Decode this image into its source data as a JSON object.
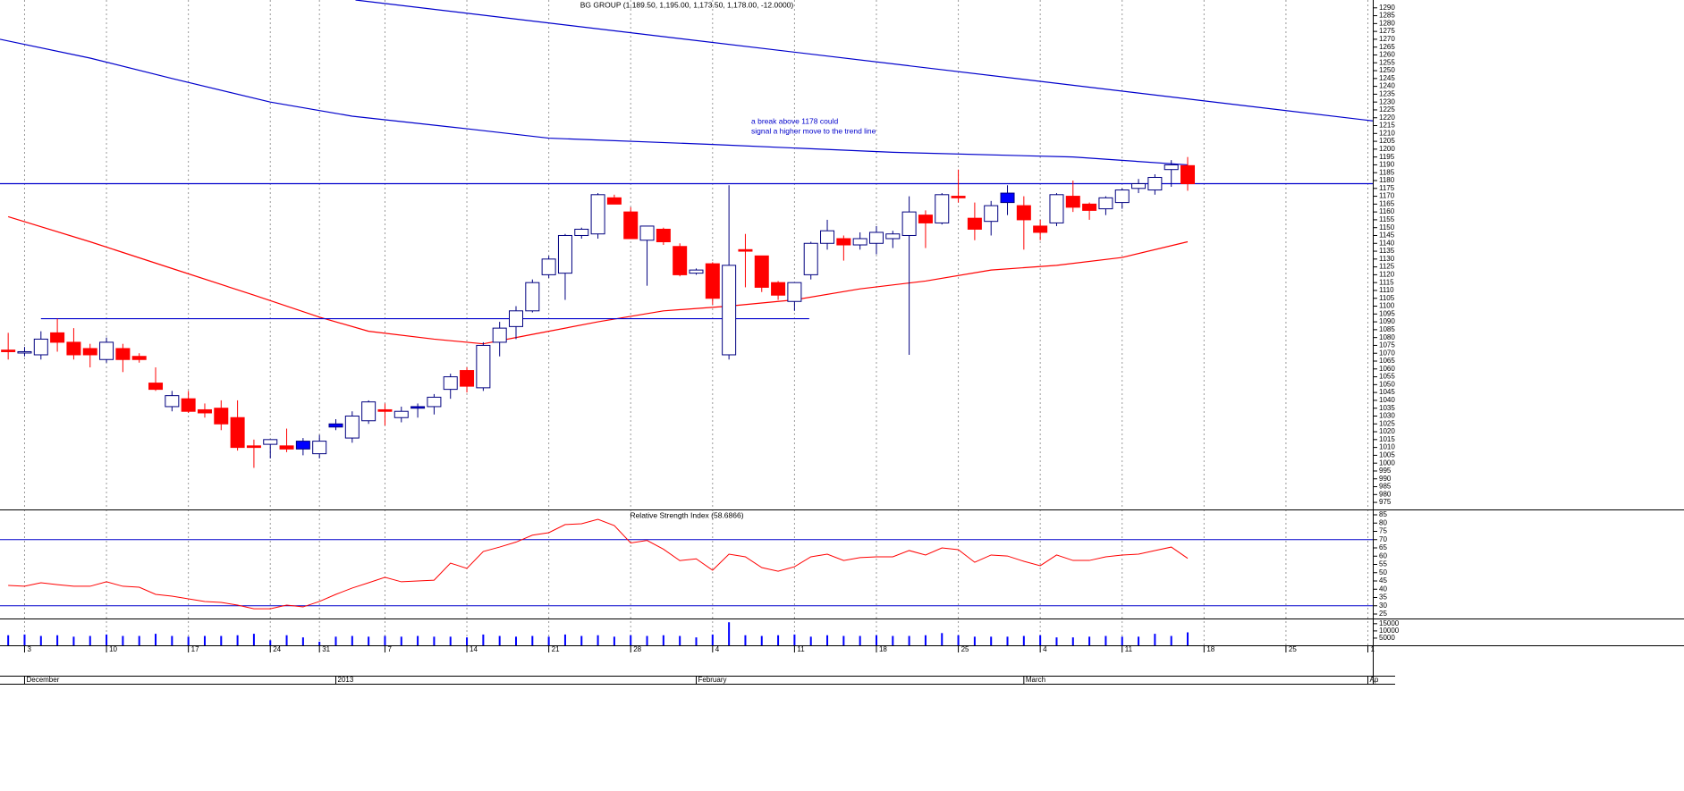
{
  "chart_data": [
    {
      "type": "candlestick",
      "title": "BG GROUP (1,189.50, 1,195.00, 1,173.50, 1,178.00, -12.0000)",
      "annotations": [
        "a break above 1178 could",
        "signal a higher move to the trend line"
      ],
      "categories": [
        null,
        "3",
        null,
        null,
        null,
        null,
        "10",
        null,
        null,
        null,
        null,
        "17",
        null,
        null,
        null,
        null,
        "24",
        null,
        null,
        "31",
        null,
        null,
        null,
        "7",
        null,
        null,
        null,
        null,
        "14",
        null,
        null,
        null,
        null,
        "21",
        null,
        null,
        null,
        null,
        "28",
        null,
        null,
        null,
        null,
        "4",
        null,
        null,
        null,
        null,
        "11",
        null,
        null,
        null,
        null,
        "18",
        null,
        null,
        null,
        null,
        "25",
        null,
        null,
        null,
        null,
        "4",
        null,
        null,
        null,
        null,
        "11",
        null,
        null,
        null,
        null,
        "18",
        null,
        null,
        null,
        null,
        "25",
        null,
        null,
        null,
        null,
        "1"
      ],
      "month_labels": [
        null,
        "December",
        null,
        null,
        null,
        null,
        null,
        null,
        null,
        null,
        null,
        null,
        null,
        null,
        null,
        null,
        null,
        null,
        null,
        null,
        "2013",
        null,
        null,
        null,
        null,
        null,
        null,
        null,
        null,
        null,
        null,
        null,
        null,
        null,
        null,
        null,
        null,
        null,
        null,
        null,
        null,
        null,
        "February",
        null,
        null,
        null,
        null,
        null,
        null,
        null,
        null,
        null,
        null,
        null,
        null,
        null,
        null,
        null,
        null,
        null,
        null,
        null,
        "March",
        null,
        null,
        null,
        null,
        null,
        null,
        null,
        null,
        null,
        null,
        null,
        null,
        null,
        null,
        null,
        null,
        null,
        null,
        null,
        null,
        "Ap"
      ],
      "xlim": [
        -0.5,
        83.3
      ],
      "open": [
        1072,
        1071,
        1069,
        1083,
        1077,
        1073,
        1066,
        1073,
        1068,
        1051,
        1036,
        1041,
        1034,
        1035,
        1029,
        1011,
        1012,
        1011,
        1009,
        1006,
        1023,
        1016,
        1027,
        1034,
        1029,
        1035,
        1036,
        1047,
        1059,
        1048,
        1077,
        1087,
        1097,
        1120,
        1121,
        1145,
        1146,
        1169,
        1160,
        1142,
        1149,
        1138,
        1121,
        1127,
        1069,
        1136,
        1132,
        1115,
        1103,
        1120,
        1140,
        1143,
        1139,
        1140,
        1143,
        1145,
        1158,
        1153,
        1170,
        1156,
        1154,
        1166,
        1164,
        1151,
        1153,
        1170,
        1165,
        1162,
        1166,
        1175,
        1174,
        1187,
        1189.5,
        null,
        null,
        null,
        null,
        null,
        null,
        null,
        null,
        null,
        null,
        null
      ],
      "high": [
        1083,
        1074,
        1084,
        1092,
        1086,
        1076,
        1080,
        1076,
        1070,
        1061,
        1046,
        1046,
        1038,
        1040,
        1040,
        1015,
        1015,
        1022,
        1016,
        1018,
        1028,
        1033,
        1040,
        1038,
        1036,
        1038,
        1044,
        1057,
        1061,
        1077,
        1090,
        1100,
        1117,
        1132,
        1146,
        1150,
        1172,
        1171,
        1163,
        1151,
        1150,
        1140,
        1124,
        1128,
        1177,
        1146,
        1132,
        1116,
        1115,
        1141,
        1155,
        1145,
        1147,
        1151,
        1148,
        1170,
        1161,
        1172,
        1187,
        1166,
        1167,
        1177,
        1170,
        1155,
        1172,
        1180,
        1166,
        1170,
        1175,
        1181,
        1184,
        1193,
        1195,
        null,
        null,
        null,
        null,
        null,
        null,
        null,
        null,
        null,
        null,
        null
      ],
      "low": [
        1066,
        1068,
        1066,
        1071,
        1066,
        1061,
        1064,
        1058,
        1064,
        1046,
        1033,
        1032,
        1029,
        1021,
        1008,
        997,
        1003,
        1007,
        1005,
        1003,
        1021,
        1013,
        1025,
        1024,
        1026,
        1029,
        1031,
        1041,
        1045,
        1046,
        1068,
        1079,
        1096,
        1118,
        1104,
        1143,
        1143,
        1165,
        1143,
        1113,
        1139,
        1119,
        1120,
        1101,
        1066,
        1112,
        1109,
        1104,
        1097,
        1117,
        1136,
        1129,
        1136,
        1133,
        1137,
        1069,
        1137,
        1152,
        1166,
        1142,
        1145,
        1158,
        1136,
        1142,
        1151,
        1160,
        1155,
        1158,
        1162,
        1172,
        1171,
        1176,
        1173.5,
        null,
        null,
        null,
        null,
        null,
        null,
        null,
        null,
        null,
        null,
        null
      ],
      "close": [
        1071,
        1071,
        1079,
        1077,
        1069,
        1069,
        1077,
        1066,
        1066,
        1047,
        1043,
        1033,
        1032,
        1025,
        1010,
        1010,
        1015,
        1009,
        1014,
        1014,
        1025,
        1030,
        1039,
        1033,
        1033,
        1036,
        1042,
        1055,
        1049,
        1075,
        1086,
        1097,
        1115,
        1130,
        1145,
        1149,
        1171,
        1165,
        1143,
        1151,
        1141,
        1120,
        1123,
        1105,
        1126,
        1135,
        1112,
        1107,
        1115,
        1140,
        1148,
        1139,
        1143,
        1147,
        1146,
        1160,
        1153,
        1171,
        1169,
        1149,
        1164,
        1172,
        1155,
        1147,
        1171,
        1163,
        1161,
        1169,
        1174,
        1178,
        1182,
        1190,
        1178,
        null,
        null,
        null,
        null,
        null,
        null,
        null,
        null,
        null,
        null,
        null
      ],
      "candle_colors": [
        "#ff0000",
        "#ffffff",
        "#ffffff",
        "#ff0000",
        "#ff0000",
        "#ff0000",
        "#ffffff",
        "#ff0000",
        "#ff0000",
        "#ff0000",
        "#ffffff",
        "#ff0000",
        "#ff0000",
        "#ff0000",
        "#ff0000",
        "#ff0000",
        "#ffffff",
        "#ff0000",
        "#0000ff",
        "#ffffff",
        "#0000ff",
        "#ffffff",
        "#ffffff",
        "#ff0000",
        "#ffffff",
        "#0000ff",
        "#ffffff",
        "#ffffff",
        "#ff0000",
        "#ffffff",
        "#ffffff",
        "#ffffff",
        "#ffffff",
        "#ffffff",
        "#ffffff",
        "#ffffff",
        "#ffffff",
        "#ff0000",
        "#ff0000",
        "#ffffff",
        "#ff0000",
        "#ff0000",
        "#ffffff",
        "#ff0000",
        "#ffffff",
        "#ff0000",
        "#ff0000",
        "#ff0000",
        "#ffffff",
        "#ffffff",
        "#ffffff",
        "#ff0000",
        "#ffffff",
        "#ffffff",
        "#ffffff",
        "#ffffff",
        "#ff0000",
        "#ffffff",
        "#ff0000",
        "#ff0000",
        "#ffffff",
        "#0000ff",
        "#ff0000",
        "#ff0000",
        "#ffffff",
        "#ff0000",
        "#ff0000",
        "#ffffff",
        "#ffffff",
        "#ffffff",
        "#ffffff",
        "#ffffff",
        "#ff0000",
        null,
        null,
        null,
        null,
        null,
        null,
        null,
        null,
        null,
        null,
        null
      ],
      "outline_color": "#000080",
      "lines": [
        {
          "color": "#ff0000",
          "x": [
            0,
            5,
            10,
            15,
            19,
            22,
            26,
            29,
            32,
            36,
            40,
            44,
            48,
            52,
            56,
            60,
            64,
            68,
            72
          ],
          "values": [
            1157,
            1141,
            1124,
            1107,
            1093,
            1084,
            1079,
            1076,
            1082,
            1090,
            1097,
            1100,
            1104,
            1111,
            1116,
            1123,
            1126,
            1131,
            1141
          ]
        },
        {
          "color": "#0000cc",
          "x": [
            -0.5,
            5,
            10,
            16,
            21,
            28,
            33,
            43,
            54,
            65,
            72
          ],
          "values": [
            1270,
            1258,
            1245,
            1230,
            1221,
            1213,
            1207,
            1203,
            1198,
            1195,
            1190
          ]
        },
        {
          "color": "#0000cc",
          "x": [
            21.2,
            83.3
          ],
          "values": [
            1295,
            1218
          ]
        },
        {
          "color": "#0000cc",
          "x": [
            -0.5,
            83.3
          ],
          "values": [
            1178,
            1178
          ]
        },
        {
          "color": "#0000cc",
          "x": [
            2,
            48.9
          ],
          "values": [
            1092,
            1092
          ]
        }
      ],
      "ylim": [
        970.5,
        1295
      ],
      "yticks": [
        975,
        980,
        985,
        990,
        995,
        1000,
        1005,
        1010,
        1015,
        1020,
        1025,
        1030,
        1035,
        1040,
        1045,
        1050,
        1055,
        1060,
        1065,
        1070,
        1075,
        1080,
        1085,
        1090,
        1095,
        1100,
        1105,
        1110,
        1115,
        1120,
        1125,
        1130,
        1135,
        1140,
        1145,
        1150,
        1155,
        1160,
        1165,
        1170,
        1175,
        1180,
        1185,
        1190,
        1195,
        1200,
        1205,
        1210,
        1215,
        1220,
        1225,
        1230,
        1235,
        1240,
        1245,
        1250,
        1255,
        1260,
        1265,
        1270,
        1275,
        1280,
        1285,
        1290
      ],
      "grid": true
    },
    {
      "type": "line",
      "title": "Relative Strength Index (58.6866)",
      "color": "#ff0000",
      "values": [
        42.3,
        41.8,
        43.9,
        42.8,
        41.8,
        41.8,
        44.5,
        41.8,
        41.2,
        36.9,
        35.8,
        34.2,
        32.6,
        32.0,
        30.4,
        28.2,
        28.2,
        30.4,
        29.3,
        32.6,
        36.9,
        40.7,
        43.9,
        47.2,
        44.5,
        45.0,
        45.5,
        55.8,
        52.6,
        62.8,
        65.5,
        68.5,
        72.7,
        74.2,
        79.1,
        79.6,
        82.3,
        78.5,
        68.0,
        69.5,
        64.2,
        57.3,
        58.4,
        51.5,
        61.2,
        59.6,
        53.1,
        50.9,
        53.6,
        59.6,
        61.2,
        57.4,
        59.1,
        59.6,
        59.6,
        63.4,
        60.7,
        65.0,
        63.9,
        56.3,
        60.7,
        60.1,
        56.9,
        54.2,
        60.7,
        57.4,
        57.4,
        59.6,
        60.7,
        61.2,
        63.4,
        65.5,
        58.6866,
        null,
        null,
        null,
        null,
        null,
        null,
        null,
        null,
        null,
        null,
        null
      ],
      "hlines": [
        70,
        30
      ],
      "hline_color": "#0000cc",
      "ylim": [
        22.3,
        87.7
      ],
      "yticks": [
        25,
        30,
        35,
        40,
        45,
        50,
        55,
        60,
        65,
        70,
        75,
        80,
        85
      ]
    },
    {
      "type": "bar",
      "color": "#0000ff",
      "values": [
        7000,
        7500,
        6500,
        7000,
        6000,
        6500,
        7500,
        6500,
        6500,
        8000,
        6500,
        6000,
        6500,
        6500,
        7000,
        8000,
        3500,
        7000,
        5500,
        2500,
        6000,
        6500,
        6000,
        6500,
        6000,
        6500,
        6000,
        6000,
        5500,
        7500,
        6500,
        6000,
        6500,
        6000,
        7500,
        6500,
        7000,
        6000,
        7000,
        6500,
        7000,
        6500,
        5500,
        7500,
        16000,
        7000,
        6500,
        7000,
        7500,
        6000,
        7000,
        6500,
        6500,
        7000,
        6500,
        6500,
        7000,
        8500,
        7000,
        6000,
        6000,
        6000,
        6500,
        7000,
        5500,
        5500,
        6000,
        6500,
        6000,
        6000,
        8000,
        6500,
        9000,
        null,
        null,
        null,
        null,
        null,
        null,
        null,
        null,
        null,
        null,
        null
      ],
      "ylim": [
        0,
        18000
      ],
      "yticks": [
        5000,
        10000,
        15000
      ]
    }
  ]
}
